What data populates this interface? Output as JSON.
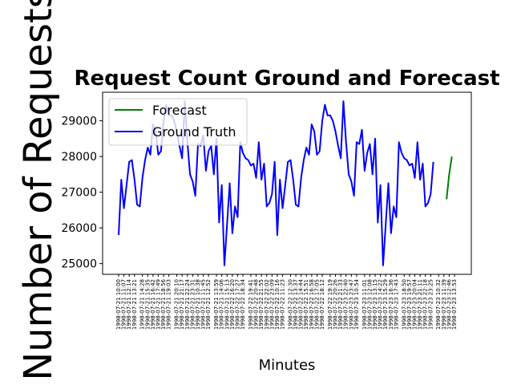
{
  "chart_data": {
    "type": "line",
    "title": "Request Count Ground and Forecast",
    "xlabel": "Minutes",
    "ylabel": "Number of Requests",
    "ylim": [
      24700,
      29800
    ],
    "yticks": [
      25000,
      26000,
      27000,
      28000,
      29000
    ],
    "grid": false,
    "legend_position": "top-left",
    "x_tick_prefix": "1998-07-",
    "series": [
      {
        "name": "Forecast",
        "color": "#008000",
        "start_index": 124,
        "values": [
          26800,
          27500,
          28000
        ]
      },
      {
        "name": "Ground Truth",
        "color": "#0000ff",
        "start_index": 0,
        "values": [
          25800,
          27350,
          26550,
          27200,
          27850,
          27900,
          27350,
          26650,
          26600,
          27400,
          27900,
          28250,
          28050,
          28900,
          28700,
          28050,
          28150,
          29000,
          29450,
          29150,
          29150,
          29000,
          28700,
          28300,
          27950,
          29550,
          28400,
          27500,
          27300,
          26900,
          28350,
          28300,
          28600,
          27600,
          28150,
          28300,
          27500,
          28500,
          26150,
          27200,
          24950,
          26100,
          27250,
          25850,
          26600,
          26300,
          28400,
          28100,
          27950,
          27900,
          27750,
          27800,
          27400,
          28400,
          27350,
          27800,
          26600,
          26700,
          26950,
          27850,
          25800,
          27350,
          26550,
          27200,
          27850,
          27900,
          27350,
          26650,
          26600,
          27400,
          27900,
          28250,
          28050,
          28900,
          28700,
          28050,
          28150,
          29000,
          29450,
          29150,
          29150,
          29000,
          28700,
          28300,
          27950,
          29550,
          28400,
          27500,
          27300,
          26900,
          28400,
          28350,
          28750,
          27600,
          28100,
          28350,
          27500,
          28500,
          26150,
          27200,
          24950,
          26100,
          27250,
          25850,
          26600,
          26300,
          28400,
          28100,
          27950,
          27900,
          27750,
          27800,
          27400,
          28400,
          27350,
          27800,
          26600,
          26700,
          26950,
          27850
        ]
      }
    ]
  }
}
